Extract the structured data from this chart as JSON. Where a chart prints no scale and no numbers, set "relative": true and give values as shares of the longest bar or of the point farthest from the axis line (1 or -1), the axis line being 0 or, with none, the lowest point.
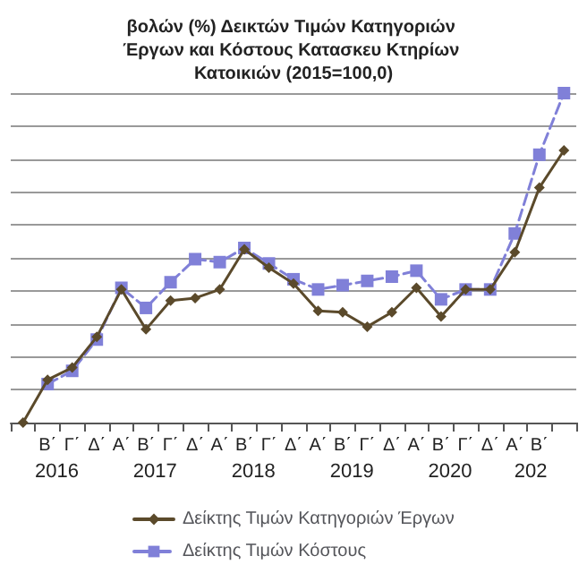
{
  "chart_data": {
    "type": "line",
    "title": "βολών (%) Δεικτών Τιμών Κατηγοριών Έργων και Κόστους Κατασκευ Κτηρίων Κατοικιών (2015=100,0)",
    "categories": [
      null,
      "Β΄",
      "Γ΄",
      "Δ΄",
      "Α΄",
      "Β΄",
      "Γ΄",
      "Δ΄",
      "Α΄",
      "Β΄",
      "Γ΄",
      "Δ΄",
      "Α΄",
      "Β΄",
      "Γ΄",
      "Δ΄",
      "Α΄",
      "Β΄",
      "Γ΄",
      "Δ΄",
      "Α΄",
      "Β΄",
      null
    ],
    "annotations": [
      "2016",
      "2017",
      "2018",
      "2019",
      "2020",
      "202"
    ],
    "relative": true,
    "grid": "y",
    "legend": "bottom",
    "series": [
      {
        "name": "Δείκτης Τιμών Κατηγοριών Έργων",
        "color": "#5b4a2b",
        "marker": "diamond",
        "line_style": "solid",
        "values": [
          0,
          0.13,
          0.167,
          0.26,
          0.404,
          0.283,
          0.37,
          0.378,
          0.404,
          0.526,
          0.47,
          0.422,
          0.339,
          0.335,
          0.291,
          0.335,
          0.409,
          0.322,
          0.404,
          0.404,
          0.517,
          0.713,
          0.826
        ]
      },
      {
        "name": "Δείκτης Τιμών Κόστους",
        "color": "#8080d8",
        "marker": "square",
        "line_style": "dashed",
        "values": [
          null,
          0.117,
          0.157,
          0.252,
          0.409,
          0.348,
          0.426,
          0.496,
          0.487,
          0.53,
          0.483,
          0.435,
          0.404,
          0.417,
          0.43,
          0.443,
          0.461,
          0.374,
          0.404,
          0.404,
          0.574,
          0.813,
          1
        ]
      }
    ]
  }
}
